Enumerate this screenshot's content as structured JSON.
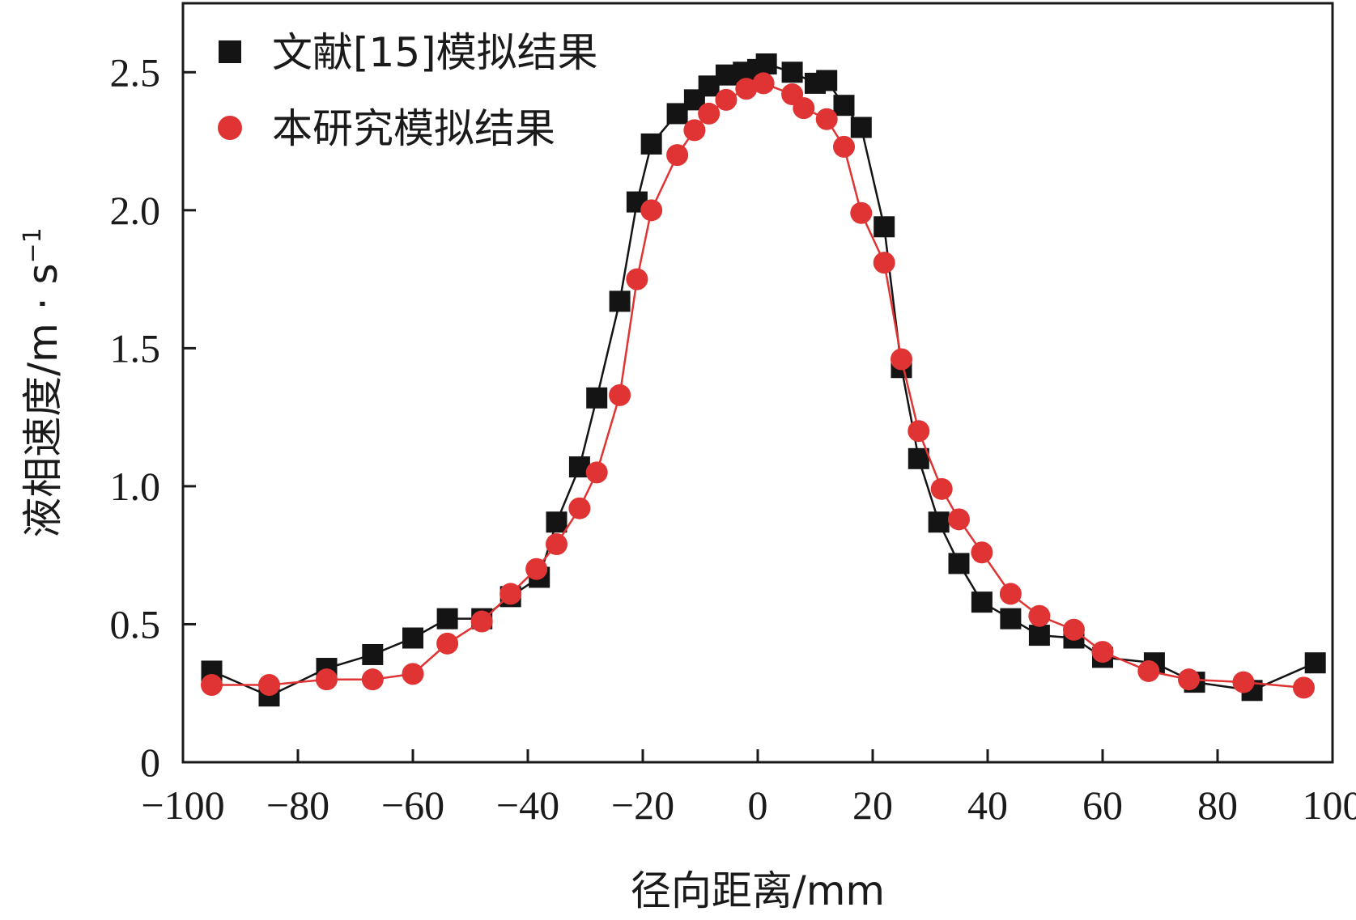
{
  "chart_data": {
    "type": "line",
    "title": "",
    "xlabel": "径向距离/mm",
    "ylabel": {
      "main": "液相速度/m · s",
      "superscript": "−1"
    },
    "xlim": [
      -100,
      100
    ],
    "ylim": [
      0,
      2.75
    ],
    "xticks": [
      -100,
      -80,
      -60,
      -40,
      -20,
      0,
      20,
      40,
      60,
      80,
      100
    ],
    "xtick_labels": [
      "−100",
      "−80",
      "−60",
      "−40",
      "−20",
      "0",
      "20",
      "40",
      "60",
      "80",
      "100"
    ],
    "yticks": [
      0,
      0.5,
      1.0,
      1.5,
      2.0,
      2.5
    ],
    "ytick_labels": [
      "0",
      "0.5",
      "1.0",
      "1.5",
      "2.0",
      "2.5"
    ],
    "grid": false,
    "legend_position": "top-left",
    "series": [
      {
        "name": "文献[15]模拟结果",
        "marker": "square",
        "color": "#141414",
        "x": [
          -95,
          -85,
          -75,
          -67,
          -60,
          -54,
          -48,
          -43,
          -38,
          -35,
          -31,
          -28,
          -24,
          -21,
          -18.5,
          -14,
          -11,
          -8.5,
          -5.5,
          -2.5,
          0,
          1.5,
          6,
          10,
          12,
          15,
          18,
          22,
          25,
          28,
          31.5,
          35,
          39,
          44,
          49,
          55,
          60,
          69,
          76,
          86,
          97
        ],
        "values": [
          0.33,
          0.24,
          0.34,
          0.39,
          0.45,
          0.52,
          0.52,
          0.6,
          0.67,
          0.87,
          1.07,
          1.32,
          1.67,
          2.03,
          2.24,
          2.35,
          2.4,
          2.45,
          2.49,
          2.5,
          2.51,
          2.53,
          2.5,
          2.46,
          2.47,
          2.38,
          2.3,
          1.94,
          1.43,
          1.1,
          0.87,
          0.72,
          0.58,
          0.52,
          0.46,
          0.45,
          0.38,
          0.36,
          0.29,
          0.26,
          0.36
        ]
      },
      {
        "name": "本研究模拟结果",
        "marker": "circle",
        "color": "#e03333",
        "x": [
          -95,
          -85,
          -75,
          -67,
          -60,
          -54,
          -48,
          -43,
          -38.5,
          -35,
          -31,
          -28,
          -24,
          -21,
          -18.5,
          -14,
          -11,
          -8.5,
          -5.5,
          -2,
          1,
          6,
          8,
          12,
          15,
          18,
          22,
          25,
          28,
          32,
          35,
          39,
          44,
          49,
          55,
          60,
          68,
          75,
          84.5,
          95
        ],
        "values": [
          0.28,
          0.28,
          0.3,
          0.3,
          0.32,
          0.43,
          0.51,
          0.61,
          0.7,
          0.79,
          0.92,
          1.05,
          1.33,
          1.75,
          2.0,
          2.2,
          2.29,
          2.35,
          2.4,
          2.44,
          2.46,
          2.42,
          2.37,
          2.33,
          2.23,
          1.99,
          1.81,
          1.46,
          1.2,
          0.99,
          0.88,
          0.76,
          0.61,
          0.53,
          0.48,
          0.4,
          0.33,
          0.3,
          0.29,
          0.27
        ]
      }
    ]
  }
}
